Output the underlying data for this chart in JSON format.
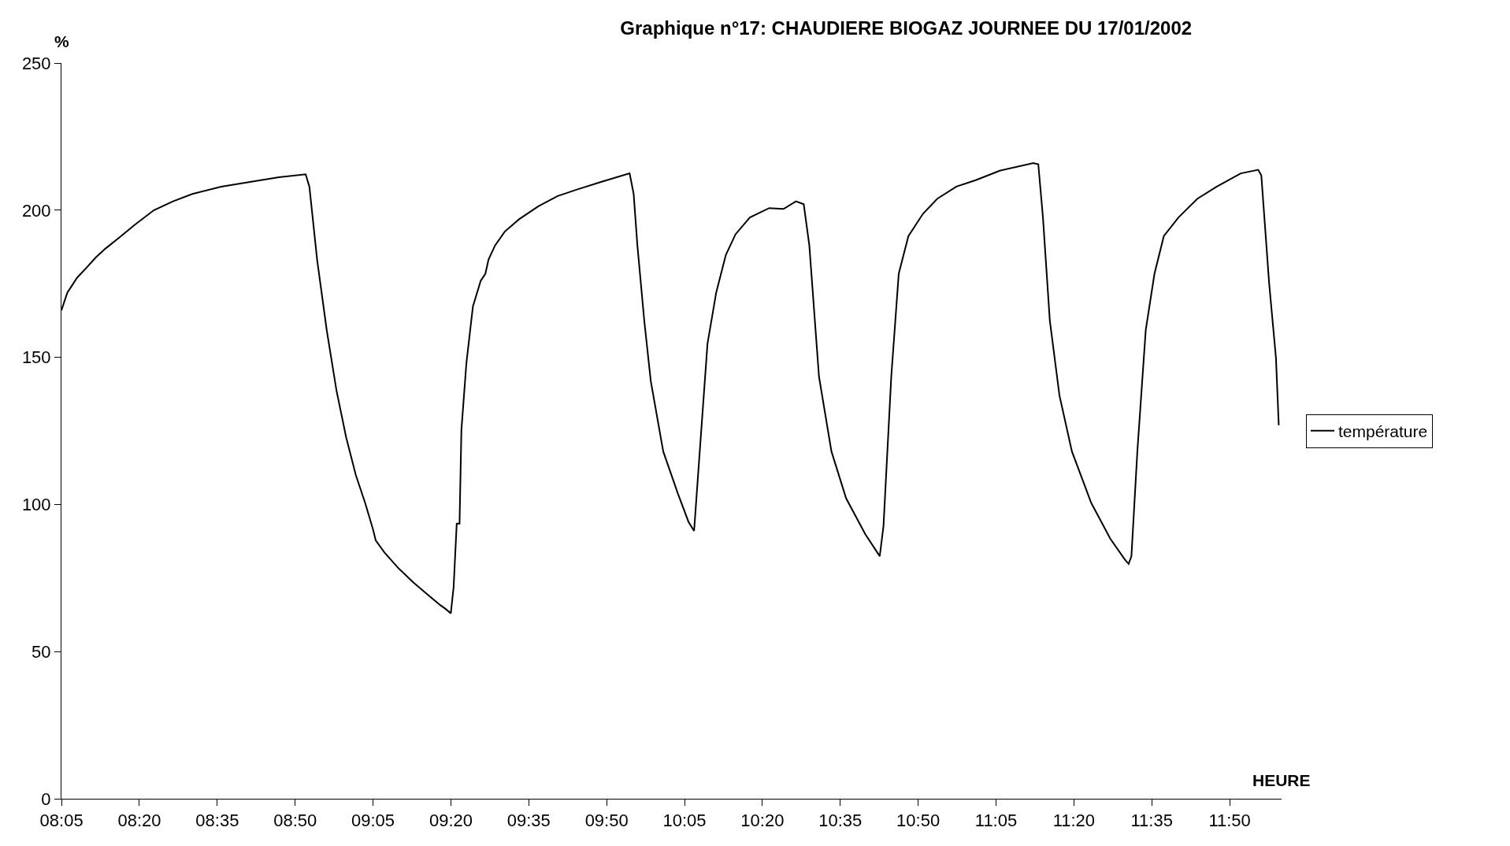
{
  "chart_data": {
    "type": "line",
    "title": "Graphique n°17: CHAUDIERE BIOGAZ JOURNEE DU 17/01/2002",
    "xlabel": "HEURE",
    "ylabel": "%",
    "xlim": [
      8.083,
      12.0
    ],
    "xticks": [
      {
        "value": 8.0833,
        "label": "08:05"
      },
      {
        "value": 8.3333,
        "label": "08:20"
      },
      {
        "value": 8.5833,
        "label": "08:35"
      },
      {
        "value": 8.8333,
        "label": "08:50"
      },
      {
        "value": 9.0833,
        "label": "09:05"
      },
      {
        "value": 9.3333,
        "label": "09:20"
      },
      {
        "value": 9.5833,
        "label": "09:35"
      },
      {
        "value": 9.8333,
        "label": "09:50"
      },
      {
        "value": 10.0833,
        "label": "10:05"
      },
      {
        "value": 10.3333,
        "label": "10:20"
      },
      {
        "value": 10.5833,
        "label": "10:35"
      },
      {
        "value": 10.8333,
        "label": "10:50"
      },
      {
        "value": 11.0833,
        "label": "11:05"
      },
      {
        "value": 11.3333,
        "label": "11:20"
      },
      {
        "value": 11.5833,
        "label": "11:35"
      },
      {
        "value": 11.8333,
        "label": "11:50"
      }
    ],
    "ylim": [
      0,
      250
    ],
    "yticks": [
      0,
      50,
      100,
      150,
      200,
      250
    ],
    "legend": "right",
    "marker": "none",
    "line_style": "solid",
    "series": [
      {
        "name": "température",
        "color": "#000000",
        "x": [
          8.083,
          8.102,
          8.133,
          8.164,
          8.194,
          8.225,
          8.272,
          8.318,
          8.38,
          8.441,
          8.503,
          8.596,
          8.688,
          8.781,
          8.867,
          8.879,
          8.904,
          8.935,
          8.966,
          8.997,
          9.028,
          9.058,
          9.083,
          9.092,
          9.12,
          9.166,
          9.213,
          9.259,
          9.299,
          9.315,
          9.333,
          9.342,
          9.352,
          9.361,
          9.367,
          9.383,
          9.404,
          9.429,
          9.444,
          9.454,
          9.475,
          9.506,
          9.552,
          9.614,
          9.676,
          9.738,
          9.815,
          9.907,
          9.92,
          9.932,
          9.954,
          9.975,
          10.015,
          10.062,
          10.096,
          10.114,
          10.13,
          10.157,
          10.185,
          10.216,
          10.247,
          10.293,
          10.355,
          10.401,
          10.441,
          10.466,
          10.484,
          10.515,
          10.555,
          10.602,
          10.663,
          10.71,
          10.722,
          10.747,
          10.771,
          10.802,
          10.849,
          10.895,
          10.956,
          11.018,
          11.095,
          11.203,
          11.219,
          11.234,
          11.256,
          11.287,
          11.327,
          11.389,
          11.45,
          11.496,
          11.509,
          11.518,
          11.537,
          11.564,
          11.592,
          11.622,
          11.669,
          11.73,
          11.792,
          11.869,
          11.925,
          11.935,
          11.96,
          11.982,
          11.991
        ],
        "values": [
          166,
          172,
          177,
          180.5,
          184,
          187,
          191,
          195,
          200,
          203,
          205.5,
          208,
          209.6,
          211.2,
          212.2,
          208,
          183,
          159,
          138.7,
          122.8,
          110,
          100.5,
          91.6,
          87.8,
          83.7,
          78.2,
          73.5,
          69.3,
          65.8,
          64.6,
          63,
          71.9,
          93.5,
          93.5,
          125.3,
          148,
          167.3,
          176,
          178.4,
          183.2,
          188,
          192.7,
          196.9,
          201.3,
          204.8,
          207,
          209.6,
          212.5,
          205.5,
          188,
          162.5,
          141.9,
          118,
          103.7,
          94.1,
          91,
          114.8,
          154.6,
          172,
          184.8,
          191.8,
          197.5,
          200.7,
          200.4,
          203,
          202,
          188,
          143.4,
          118,
          102.1,
          90,
          82.4,
          92.6,
          143.4,
          178.4,
          191.2,
          198.8,
          203.9,
          208,
          210.2,
          213.4,
          216,
          215.6,
          197.5,
          162.5,
          137,
          118,
          100.5,
          88.4,
          81.4,
          79.8,
          82.4,
          118,
          159.3,
          178.4,
          191.2,
          197.5,
          203.9,
          208,
          212.5,
          213.7,
          211.8,
          175.3,
          149.8,
          126.9
        ]
      }
    ]
  }
}
